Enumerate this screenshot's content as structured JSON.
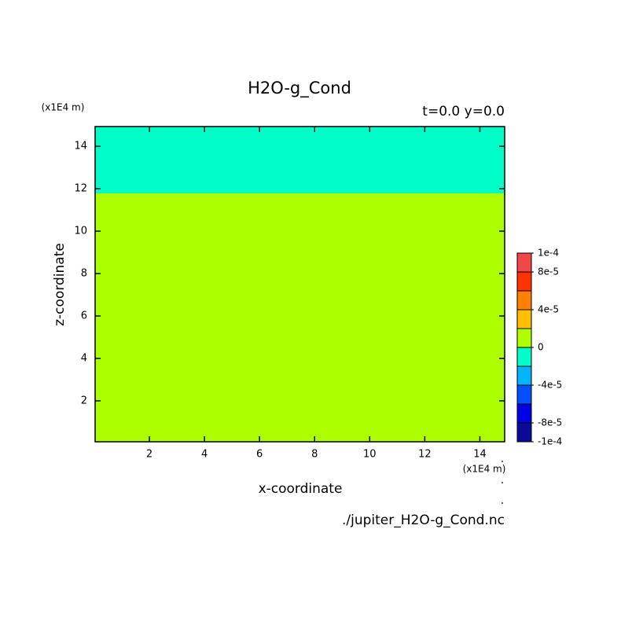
{
  "chart_data": {
    "type": "contour",
    "title": "H2O-g_Cond",
    "subtitle": "t=0.0 y=0.0",
    "x_label": "x-coordinate",
    "y_label": "z-coordinate",
    "x_unit": "(x1E4 m)",
    "y_unit": "(x1E4 m)",
    "source": "./jupiter_H2O-g_Cond.nc",
    "xlim": [
      0.03,
      14.9
    ],
    "ylim": [
      0.07,
      14.93
    ],
    "xticks": [
      2,
      4,
      6,
      8,
      10,
      12,
      14
    ],
    "yticks": [
      2,
      4,
      6,
      8,
      10,
      12,
      14
    ],
    "regions": [
      {
        "zlim": [
          0.07,
          11.78
        ],
        "range": [
          0,
          2e-05
        ]
      },
      {
        "zlim": [
          11.78,
          14.93
        ],
        "range": [
          -2e-05,
          0
        ]
      }
    ],
    "colorbar": {
      "levels": [
        -0.0001,
        -8e-05,
        -6e-05,
        -4e-05,
        -2e-05,
        0,
        2e-05,
        4e-05,
        6e-05,
        8e-05,
        0.0001
      ],
      "colors": [
        "#0a0a96",
        "#0000e6",
        "#0050ff",
        "#00b4ff",
        "#00ffc8",
        "#adff00",
        "#ffbe00",
        "#ff8000",
        "#ff3200",
        "#f04848"
      ],
      "ticks": [
        {
          "value": 0.0001,
          "label": "1e-4"
        },
        {
          "value": 8e-05,
          "label": "8e-5"
        },
        {
          "value": 4e-05,
          "label": "4e-5"
        },
        0,
        {
          "value": -4e-05,
          "label": "-4e-5"
        },
        {
          "value": -8e-05,
          "label": "-8e-5"
        },
        {
          "value": -0.0001,
          "label": "-1e-4"
        }
      ]
    }
  }
}
